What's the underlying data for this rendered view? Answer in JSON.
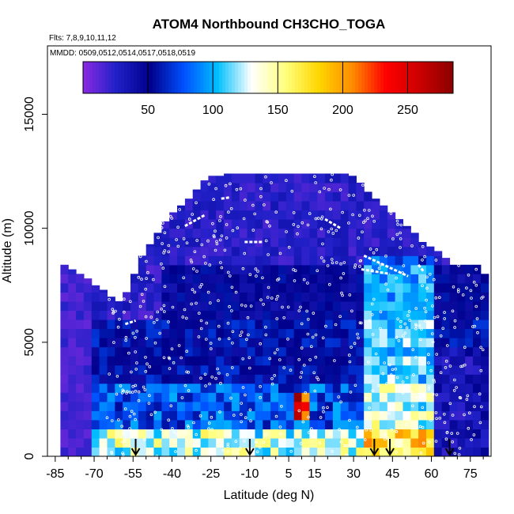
{
  "chart_data": {
    "type": "heatmap",
    "title": "ATOM4 Northbound CH3CHO_TOGA",
    "flights_label": "Flts: 7,8,9,10,11,12",
    "dates_label": "MMDD: 0509,0512,0514,0517,0518,0519",
    "xlabel": "Latitude (deg N)",
    "ylabel": "Altitude (m)",
    "xlim": [
      -88,
      83
    ],
    "ylim": [
      0,
      18000
    ],
    "x_ticks": [
      -85,
      -70,
      -55,
      -40,
      -25,
      -10,
      5,
      15,
      30,
      45,
      60,
      75
    ],
    "x_minor_ticks": [
      -80,
      -75,
      -65,
      -60,
      -50,
      -45,
      -35,
      -30,
      -20,
      -15,
      -5,
      0,
      10,
      20,
      25,
      35,
      40,
      50,
      55,
      65,
      70,
      80
    ],
    "y_ticks": [
      0,
      5000,
      10000,
      15000
    ],
    "colorbar": {
      "range": [
        0,
        285
      ],
      "ticks": [
        50,
        100,
        150,
        200,
        250
      ],
      "colors": [
        "#8a2be2",
        "#2020c8",
        "#00008b",
        "#0050ff",
        "#00bfff",
        "#ffffff",
        "#ffff80",
        "#ffd700",
        "#ff8c00",
        "#ff0000",
        "#cc0000",
        "#8b0000"
      ]
    },
    "arrows_lat": [
      -54,
      -10,
      38,
      44,
      67
    ],
    "profile": {
      "lat_edges": [
        -83,
        -80,
        -77,
        -74,
        -71,
        -68,
        -65,
        -62,
        -59,
        -56,
        -53,
        -50,
        -47,
        -44,
        -41,
        -38,
        -35,
        -32,
        -29,
        -26,
        -23,
        -20,
        -17,
        -14,
        -11,
        -8,
        -5,
        -2,
        1,
        4,
        7,
        10,
        13,
        16,
        19,
        22,
        25,
        28,
        31,
        34,
        37,
        40,
        43,
        46,
        49,
        52,
        55,
        58,
        61,
        64,
        67,
        70,
        73,
        76,
        79,
        82
      ],
      "top_m": [
        8400,
        8200,
        8000,
        7800,
        7500,
        7300,
        7000,
        6800,
        7200,
        8000,
        8800,
        9300,
        9800,
        10300,
        10700,
        11000,
        11300,
        11700,
        12100,
        12300,
        12300,
        12400,
        12400,
        12400,
        12400,
        12400,
        12400,
        12400,
        12400,
        12400,
        12400,
        12400,
        12400,
        12400,
        12400,
        12400,
        12400,
        12300,
        12000,
        11600,
        11300,
        11000,
        10700,
        10400,
        10100,
        9800,
        9400,
        9200,
        9000,
        8700,
        8400,
        8400,
        8400,
        8400,
        8000
      ]
    },
    "hotspot": {
      "lat_range": [
        7,
        13
      ],
      "alt_range": [
        1800,
        2600
      ],
      "max_value": 285
    }
  }
}
